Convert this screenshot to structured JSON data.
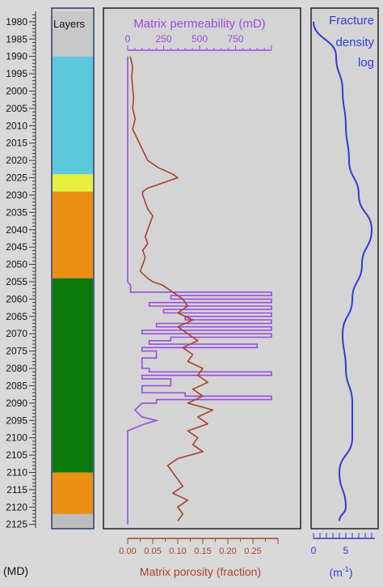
{
  "depth_axis": {
    "unit_label": "(MD)",
    "ticks": [
      1980,
      1985,
      1990,
      1995,
      2000,
      2005,
      2010,
      2015,
      2020,
      2025,
      2030,
      2035,
      2040,
      2045,
      2050,
      2055,
      2060,
      2065,
      2070,
      2075,
      2080,
      2085,
      2090,
      2095,
      2100,
      2105,
      2110,
      2115,
      2120,
      2125
    ],
    "range": [
      1977,
      2126
    ]
  },
  "layers_track": {
    "title": "Layers",
    "layers": [
      {
        "top": 1977,
        "base": 1990,
        "color": "#c8c8c8"
      },
      {
        "top": 1990,
        "base": 2024,
        "color": "#5bc8dc"
      },
      {
        "top": 2024,
        "base": 2029,
        "color": "#e8ef3c"
      },
      {
        "top": 2029,
        "base": 2054,
        "color": "#ea8f12"
      },
      {
        "top": 2054,
        "base": 2110,
        "color": "#0b780b"
      },
      {
        "top": 2110,
        "base": 2122,
        "color": "#ea8f12"
      },
      {
        "top": 2122,
        "base": 2126,
        "color": "#bdbdbd"
      }
    ]
  },
  "chart_data": {
    "type": "line",
    "y_axis": {
      "label": "",
      "unit": "(MD)",
      "range": [
        1977,
        2126
      ],
      "inverted": true
    },
    "permeability": {
      "label": "Matrix permeability (mD)",
      "color": "#9a4de0",
      "xlim": [
        0,
        1000
      ],
      "ticks": [
        0,
        250,
        500,
        750
      ],
      "depths": [
        1990,
        2055,
        2056,
        2058,
        2058,
        2059,
        2059,
        2060,
        2060,
        2061,
        2061,
        2062,
        2062,
        2063,
        2063,
        2064,
        2064,
        2065,
        2065,
        2066,
        2066,
        2067,
        2067,
        2068,
        2068,
        2069,
        2069,
        2070,
        2070,
        2071,
        2071,
        2072,
        2072,
        2073,
        2073,
        2074,
        2074,
        2075,
        2075,
        2077,
        2077,
        2080,
        2080,
        2081,
        2081,
        2082,
        2082,
        2083,
        2083,
        2085,
        2085,
        2087,
        2087,
        2088,
        2088,
        2089,
        2089,
        2090,
        2090,
        2092,
        2094,
        2095,
        2096,
        2097,
        2098,
        2125
      ],
      "values": [
        0,
        0,
        20,
        20,
        1000,
        1000,
        300,
        300,
        1000,
        1000,
        150,
        150,
        1000,
        1000,
        250,
        250,
        1000,
        1000,
        400,
        400,
        1000,
        1000,
        200,
        200,
        1000,
        1000,
        100,
        100,
        1000,
        1000,
        300,
        300,
        150,
        150,
        900,
        900,
        100,
        100,
        200,
        200,
        100,
        100,
        150,
        150,
        1000,
        1000,
        100,
        100,
        300,
        300,
        100,
        100,
        400,
        400,
        1000,
        1000,
        200,
        200,
        100,
        50,
        100,
        200,
        120,
        60,
        0,
        0
      ]
    },
    "porosity": {
      "label": "Matrix porosity (fraction)",
      "color": "#a8422c",
      "xlim": [
        0,
        0.3
      ],
      "ticks": [
        0.0,
        0.05,
        0.1,
        0.15,
        0.2,
        0.25
      ],
      "depths": [
        1990,
        1993,
        1996,
        1999,
        2002,
        2005,
        2008,
        2011,
        2014,
        2017,
        2020,
        2022,
        2024,
        2025,
        2026,
        2027,
        2028,
        2029,
        2030,
        2032,
        2034,
        2036,
        2038,
        2040,
        2042,
        2044,
        2046,
        2048,
        2050,
        2052,
        2054,
        2055,
        2056,
        2058,
        2060,
        2062,
        2064,
        2066,
        2068,
        2070,
        2072,
        2074,
        2076,
        2078,
        2080,
        2082,
        2084,
        2086,
        2088,
        2090,
        2092,
        2094,
        2096,
        2098,
        2100,
        2102,
        2104,
        2106,
        2108,
        2110,
        2112,
        2114,
        2116,
        2118,
        2120,
        2122,
        2124
      ],
      "values": [
        0.005,
        0.01,
        0.008,
        0.01,
        0.012,
        0.01,
        0.015,
        0.01,
        0.02,
        0.03,
        0.04,
        0.06,
        0.09,
        0.1,
        0.08,
        0.06,
        0.04,
        0.03,
        0.03,
        0.035,
        0.04,
        0.05,
        0.045,
        0.04,
        0.035,
        0.04,
        0.03,
        0.035,
        0.03,
        0.025,
        0.04,
        0.05,
        0.07,
        0.09,
        0.11,
        0.12,
        0.1,
        0.13,
        0.1,
        0.12,
        0.14,
        0.11,
        0.13,
        0.12,
        0.15,
        0.14,
        0.16,
        0.13,
        0.15,
        0.12,
        0.17,
        0.14,
        0.16,
        0.12,
        0.14,
        0.13,
        0.15,
        0.1,
        0.08,
        0.09,
        0.1,
        0.11,
        0.09,
        0.12,
        0.1,
        0.11,
        0.1
      ]
    }
  },
  "fracture_track": {
    "title_line1": "Fracture",
    "title_line2": "density",
    "title_line3": "log",
    "unit_label": "(m",
    "unit_exp": "-1",
    "unit_close": ")",
    "color": "#2b3fd6",
    "xlim": [
      0,
      9.5
    ],
    "ticks": [
      0,
      5
    ],
    "depths": [
      1980,
      1990,
      2000,
      2010,
      2020,
      2030,
      2040,
      2050,
      2060,
      2070,
      2080,
      2090,
      2100,
      2110,
      2120,
      2124
    ],
    "values": [
      0,
      3.5,
      4.5,
      5,
      5.5,
      7,
      9,
      7.5,
      6,
      4.5,
      5,
      6,
      6,
      4,
      5,
      4
    ]
  }
}
